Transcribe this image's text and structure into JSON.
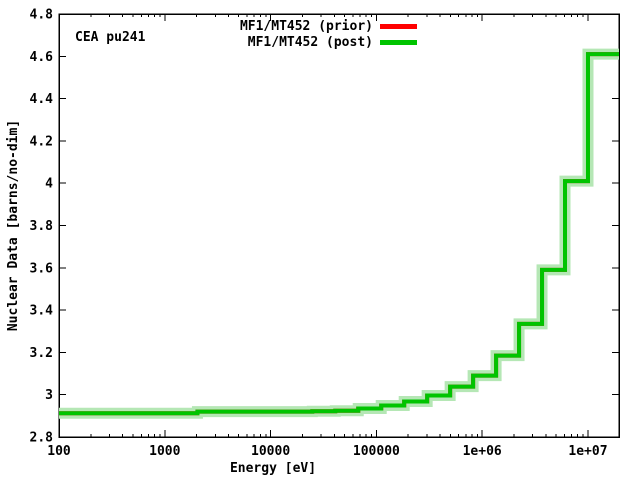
{
  "figure": {
    "annotation": "CEA pu241",
    "background_color": "#ffffff",
    "text_color": "#000000"
  },
  "axes": {
    "xlabel": "Energy [eV]",
    "ylabel": "Nuclear Data [barns/no-dim]",
    "x_scale": "log",
    "x_min": 100,
    "x_max": 19640000,
    "y_min": 2.8,
    "y_max": 4.8,
    "x_ticks": [
      {
        "value": 100,
        "label": "100"
      },
      {
        "value": 1000,
        "label": "1000"
      },
      {
        "value": 10000,
        "label": "10000"
      },
      {
        "value": 100000,
        "label": "100000"
      },
      {
        "value": 1000000,
        "label": "1e+06"
      },
      {
        "value": 10000000,
        "label": "1e+07"
      }
    ],
    "y_ticks": [
      {
        "value": 2.8,
        "label": "2.8"
      },
      {
        "value": 3.0,
        "label": "3"
      },
      {
        "value": 3.2,
        "label": "3.2"
      },
      {
        "value": 3.4,
        "label": "3.4"
      },
      {
        "value": 3.6,
        "label": "3.6"
      },
      {
        "value": 3.8,
        "label": "3.8"
      },
      {
        "value": 4.0,
        "label": "4"
      },
      {
        "value": 4.2,
        "label": "4.2"
      },
      {
        "value": 4.4,
        "label": "4.4"
      },
      {
        "value": 4.6,
        "label": "4.6"
      },
      {
        "value": 4.8,
        "label": "4.8"
      }
    ]
  },
  "legend": {
    "position": "top-inside",
    "entries": [
      {
        "label": "MF1/MT452 (prior)",
        "color": "#ff0000"
      },
      {
        "label": "MF1/MT452 (post)",
        "color": "#00c400"
      }
    ]
  },
  "chart_data": {
    "type": "line",
    "subtype": "multigroup-step-histogram",
    "title": "CEA pu241",
    "xlabel": "Energy [eV]",
    "ylabel": "Nuclear Data [barns/no-dim]",
    "x_scale": "log",
    "xlim": [
      100,
      19640000
    ],
    "ylim": [
      2.8,
      4.8
    ],
    "grid": false,
    "legend_position": "top-center-inside",
    "group_boundaries_eV": [
      100,
      2034.7,
      24788,
      40868,
      67380,
      111090,
      183160,
      301970,
      497870,
      820850,
      1353400,
      2231300,
      3678800,
      6065300,
      10000000,
      19640000
    ],
    "series": [
      {
        "name": "MF1/MT452 (prior)",
        "color": "#ff0000",
        "values": [
          2.912,
          2.92,
          2.922,
          2.924,
          2.935,
          2.949,
          2.968,
          2.996,
          3.038,
          3.09,
          3.185,
          3.335,
          3.59,
          4.01,
          4.61
        ],
        "note": "fully overlapped by post curve"
      },
      {
        "name": "MF1/MT452 (post)",
        "color": "#00c400",
        "band_color": "#b5e7b5",
        "band_halfwidth": 0.017,
        "values": [
          2.912,
          2.92,
          2.922,
          2.924,
          2.935,
          2.949,
          2.968,
          2.996,
          3.038,
          3.09,
          3.185,
          3.335,
          3.59,
          4.01,
          4.61
        ]
      }
    ]
  }
}
